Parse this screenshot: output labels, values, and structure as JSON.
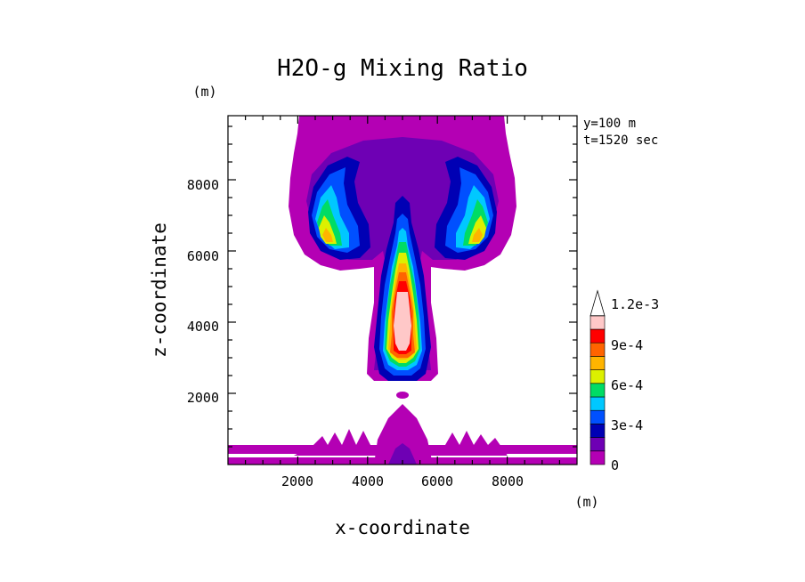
{
  "chart_data": {
    "type": "heatmap",
    "title": "H2O-g Mixing Ratio",
    "xlabel": "x-coordinate",
    "ylabel": "z-coordinate",
    "x_unit": "(m)",
    "y_unit": "(m)",
    "xlim": [
      0,
      10000
    ],
    "ylim": [
      0,
      9800
    ],
    "x_ticks": [
      2000,
      4000,
      6000,
      8000
    ],
    "y_ticks": [
      2000,
      4000,
      6000,
      8000
    ],
    "x_tick_labels": [
      "2000",
      "4000",
      "6000",
      "8000"
    ],
    "y_tick_labels": [
      "2000",
      "4000",
      "6000",
      "8000"
    ],
    "annotations": [
      "y=100 m",
      "t=1520 sec"
    ],
    "colorbar": {
      "levels": [
        0,
        0.00015,
        0.0003,
        0.00045,
        0.0006,
        0.00075,
        0.0009,
        0.00105,
        0.0012,
        0.00135
      ],
      "colors": [
        "#b400b4",
        "#6e00b4",
        "#0000b4",
        "#0050ff",
        "#00c8ff",
        "#00dc64",
        "#dcf000",
        "#ffb400",
        "#ff6400",
        "#ff0000",
        "#ffc8c8",
        "#ffffff"
      ],
      "labels": [
        {
          "value": 0,
          "text": "0"
        },
        {
          "value": 0.0003,
          "text": "3e-4"
        },
        {
          "value": 0.0006,
          "text": "6e-4"
        },
        {
          "value": 0.0009,
          "text": "9e-4"
        },
        {
          "value": 0.0012,
          "text": "1.2e-3"
        }
      ]
    }
  }
}
